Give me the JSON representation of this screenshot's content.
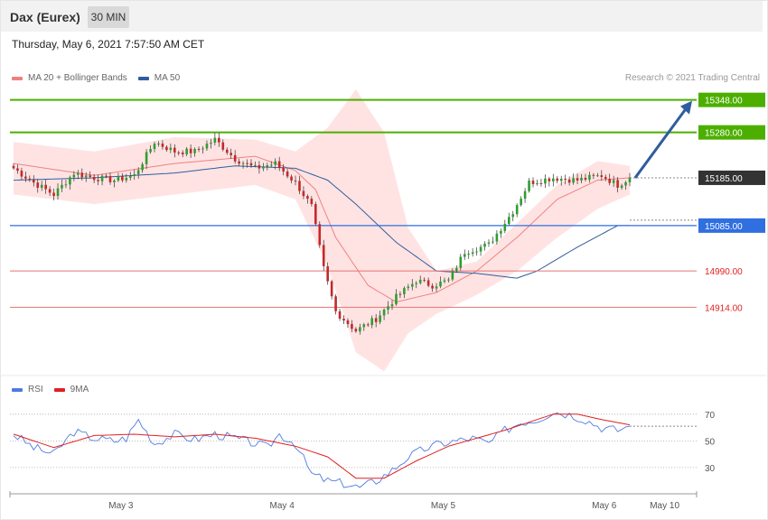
{
  "header": {
    "title": "Dax (Eurex)",
    "timeframe": "30 MIN",
    "timestamp": "Thursday, May 6, 2021 7:57:50 AM CET",
    "credit": "Research © 2021 Trading Central"
  },
  "colors": {
    "up_candle": "#2e9e2e",
    "down_candle": "#c62828",
    "bollinger_fill": "#ffdada",
    "ma20": "#f08080",
    "ma50": "#2f5d9e",
    "resistance": "#4caf00",
    "pivot": "#2f6fe0",
    "support": "#e57373",
    "current": "#333333",
    "rsi": "#4f7be0",
    "rsi_ma": "#e02020",
    "arrow": "#2f5d9e"
  },
  "chart_data": [
    {
      "type": "candlestick",
      "legend": [
        {
          "name": "MA 20 + Bollinger Bands",
          "color": "#f08080"
        },
        {
          "name": "MA 50",
          "color": "#2f5d9e"
        }
      ],
      "ylim": [
        14775,
        15370
      ],
      "levels": [
        {
          "label": "15348.00",
          "value": 15348,
          "kind": "resistance"
        },
        {
          "label": "15280.00",
          "value": 15280,
          "kind": "resistance"
        },
        {
          "label": "15185.00",
          "value": 15185,
          "kind": "current"
        },
        {
          "label": "15085.00",
          "value": 15085,
          "kind": "pivot"
        },
        {
          "label": "14990.00",
          "value": 14990,
          "kind": "support"
        },
        {
          "label": "14914.00",
          "value": 14914,
          "kind": "support"
        }
      ],
      "close_anchors": [
        [
          0,
          15205
        ],
        [
          5,
          15175
        ],
        [
          10,
          15150
        ],
        [
          15,
          15195
        ],
        [
          20,
          15185
        ],
        [
          25,
          15180
        ],
        [
          30,
          15190
        ],
        [
          35,
          15260
        ],
        [
          40,
          15240
        ],
        [
          45,
          15240
        ],
        [
          50,
          15265
        ],
        [
          55,
          15225
        ],
        [
          60,
          15205
        ],
        [
          65,
          15215
        ],
        [
          70,
          15175
        ],
        [
          74,
          15125
        ],
        [
          77,
          14995
        ],
        [
          80,
          14905
        ],
        [
          85,
          14865
        ],
        [
          90,
          14890
        ],
        [
          95,
          14935
        ],
        [
          100,
          14970
        ],
        [
          104,
          14960
        ],
        [
          108,
          14970
        ],
        [
          112,
          15030
        ],
        [
          118,
          15045
        ],
        [
          124,
          15115
        ],
        [
          128,
          15175
        ],
        [
          134,
          15185
        ],
        [
          140,
          15180
        ],
        [
          146,
          15190
        ],
        [
          150,
          15170
        ],
        [
          153,
          15185
        ]
      ],
      "ma20": [
        [
          0,
          15215
        ],
        [
          20,
          15190
        ],
        [
          40,
          15215
        ],
        [
          60,
          15230
        ],
        [
          70,
          15200
        ],
        [
          75,
          15160
        ],
        [
          80,
          15060
        ],
        [
          88,
          14960
        ],
        [
          95,
          14925
        ],
        [
          105,
          14945
        ],
        [
          115,
          14990
        ],
        [
          125,
          15060
        ],
        [
          135,
          15140
        ],
        [
          145,
          15180
        ],
        [
          153,
          15185
        ]
      ],
      "bb_upper": [
        [
          0,
          15260
        ],
        [
          20,
          15240
        ],
        [
          40,
          15270
        ],
        [
          60,
          15265
        ],
        [
          70,
          15240
        ],
        [
          78,
          15290
        ],
        [
          85,
          15370
        ],
        [
          92,
          15280
        ],
        [
          98,
          15080
        ],
        [
          105,
          14990
        ],
        [
          115,
          15010
        ],
        [
          125,
          15090
        ],
        [
          135,
          15170
        ],
        [
          145,
          15220
        ],
        [
          153,
          15210
        ]
      ],
      "bb_lower": [
        [
          0,
          15150
        ],
        [
          20,
          15130
        ],
        [
          40,
          15150
        ],
        [
          60,
          15170
        ],
        [
          70,
          15140
        ],
        [
          78,
          15000
        ],
        [
          85,
          14820
        ],
        [
          92,
          14780
        ],
        [
          98,
          14860
        ],
        [
          105,
          14900
        ],
        [
          115,
          14940
        ],
        [
          125,
          14990
        ],
        [
          135,
          15060
        ],
        [
          145,
          15120
        ],
        [
          153,
          15150
        ]
      ],
      "ma50": [
        [
          0,
          15180
        ],
        [
          20,
          15185
        ],
        [
          40,
          15195
        ],
        [
          55,
          15210
        ],
        [
          70,
          15205
        ],
        [
          78,
          15180
        ],
        [
          85,
          15130
        ],
        [
          95,
          15050
        ],
        [
          105,
          14990
        ],
        [
          115,
          14985
        ],
        [
          125,
          14975
        ],
        [
          130,
          14990
        ],
        [
          140,
          15040
        ],
        [
          150,
          15085
        ],
        [
          153,
          15085
        ]
      ],
      "forecast_arrow": {
        "from": 15185,
        "to": 15348
      },
      "x_ticks": [
        {
          "label": "May 3",
          "index": 15
        },
        {
          "label": "May 4",
          "index": 55
        },
        {
          "label": "May 5",
          "index": 95
        },
        {
          "label": "May 6",
          "index": 135
        },
        {
          "label": "May 10",
          "index": 150
        }
      ]
    },
    {
      "type": "line",
      "legend": [
        {
          "name": "RSI",
          "color": "#4f7be0"
        },
        {
          "name": "9MA",
          "color": "#e02020"
        }
      ],
      "ylim": [
        13,
        78
      ],
      "y_ticks": [
        "70",
        "50",
        "30"
      ],
      "rsi_anchors": [
        [
          0,
          55
        ],
        [
          5,
          45
        ],
        [
          10,
          40
        ],
        [
          15,
          57
        ],
        [
          20,
          52
        ],
        [
          25,
          50
        ],
        [
          28,
          52
        ],
        [
          31,
          66
        ],
        [
          35,
          48
        ],
        [
          40,
          55
        ],
        [
          45,
          51
        ],
        [
          50,
          55
        ],
        [
          55,
          52
        ],
        [
          60,
          48
        ],
        [
          63,
          45
        ],
        [
          66,
          55
        ],
        [
          70,
          48
        ],
        [
          74,
          25
        ],
        [
          78,
          20
        ],
        [
          82,
          18
        ],
        [
          86,
          15
        ],
        [
          90,
          20
        ],
        [
          94,
          28
        ],
        [
          98,
          38
        ],
        [
          102,
          44
        ],
        [
          106,
          48
        ],
        [
          110,
          50
        ],
        [
          114,
          52
        ],
        [
          118,
          48
        ],
        [
          122,
          58
        ],
        [
          126,
          64
        ],
        [
          130,
          66
        ],
        [
          134,
          72
        ],
        [
          138,
          70
        ],
        [
          142,
          66
        ],
        [
          146,
          60
        ],
        [
          150,
          58
        ],
        [
          153,
          61
        ]
      ],
      "ma_anchors": [
        [
          0,
          55
        ],
        [
          10,
          45
        ],
        [
          20,
          54
        ],
        [
          30,
          55
        ],
        [
          40,
          53
        ],
        [
          50,
          55
        ],
        [
          60,
          52
        ],
        [
          70,
          46
        ],
        [
          78,
          38
        ],
        [
          85,
          22
        ],
        [
          92,
          22
        ],
        [
          100,
          35
        ],
        [
          108,
          46
        ],
        [
          115,
          52
        ],
        [
          122,
          58
        ],
        [
          128,
          64
        ],
        [
          134,
          70
        ],
        [
          140,
          70
        ],
        [
          146,
          66
        ],
        [
          153,
          62
        ]
      ],
      "current": 61
    }
  ]
}
